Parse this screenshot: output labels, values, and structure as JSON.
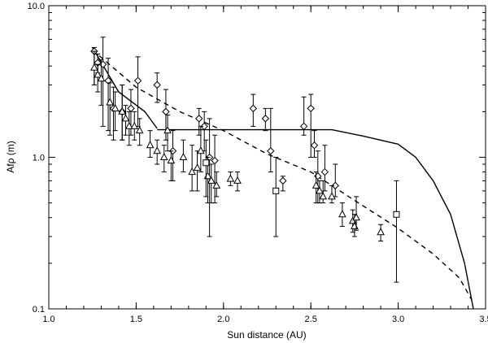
{
  "chart_data": {
    "type": "scatter",
    "xlabel": "Sun distance (AU)",
    "ylabel": "Afρ (m)",
    "xlim": [
      1.0,
      3.5
    ],
    "ylim": [
      0.1,
      10.0
    ],
    "yscale": "log",
    "grid": false,
    "x_ticks": [
      1.0,
      1.5,
      2.0,
      2.5,
      3.0,
      3.5
    ],
    "x_tick_labels": [
      "1.0",
      "1.5",
      "2.0",
      "2.5",
      "3.0",
      "3.5"
    ],
    "y_ticks": [
      0.1,
      1.0,
      10.0
    ],
    "y_tick_labels": [
      "0.1",
      "1.0",
      "10.0"
    ],
    "series": [
      {
        "marker": "diamond",
        "points": [
          {
            "x": 1.26,
            "y": 5.0,
            "ylo": 3.0,
            "yhi": 5.3
          },
          {
            "x": 1.28,
            "y": 4.2,
            "ylo": 3.6,
            "yhi": 4.8
          },
          {
            "x": 1.31,
            "y": 4.1,
            "ylo": 1.6,
            "yhi": 6.2
          },
          {
            "x": 1.34,
            "y": 3.2,
            "ylo": 1.5,
            "yhi": 4.5
          },
          {
            "x": 1.37,
            "y": 2.1,
            "ylo": 1.3,
            "yhi": 2.9
          },
          {
            "x": 1.42,
            "y": 2.0,
            "ylo": 1.3,
            "yhi": 3.0
          },
          {
            "x": 1.47,
            "y": 2.1,
            "ylo": 1.4,
            "yhi": 2.8
          },
          {
            "x": 1.51,
            "y": 3.2,
            "ylo": 1.6,
            "yhi": 4.6
          },
          {
            "x": 1.62,
            "y": 3.0,
            "ylo": 2.3,
            "yhi": 3.6
          },
          {
            "x": 1.67,
            "y": 2.0,
            "ylo": 1.3,
            "yhi": 2.8
          },
          {
            "x": 1.71,
            "y": 1.1,
            "ylo": 0.7,
            "yhi": 1.5
          },
          {
            "x": 1.86,
            "y": 1.8,
            "ylo": 1.4,
            "yhi": 2.1
          },
          {
            "x": 1.89,
            "y": 1.6,
            "ylo": 1.1,
            "yhi": 2.0
          },
          {
            "x": 1.92,
            "y": 1.0,
            "ylo": 0.3,
            "yhi": 1.8
          },
          {
            "x": 1.95,
            "y": 0.95,
            "ylo": 0.5,
            "yhi": 1.4
          },
          {
            "x": 2.17,
            "y": 2.1,
            "ylo": 1.6,
            "yhi": 2.6
          },
          {
            "x": 2.24,
            "y": 1.8,
            "ylo": 1.5,
            "yhi": 2.1
          },
          {
            "x": 2.27,
            "y": 1.1,
            "ylo": 0.8,
            "yhi": 2.1
          },
          {
            "x": 2.34,
            "y": 0.7,
            "ylo": 0.6,
            "yhi": 0.75
          },
          {
            "x": 2.46,
            "y": 1.6,
            "ylo": 1.4,
            "yhi": 2.5
          },
          {
            "x": 2.5,
            "y": 2.1,
            "ylo": 1.0,
            "yhi": 2.6
          },
          {
            "x": 2.52,
            "y": 1.2,
            "ylo": 1.0,
            "yhi": 1.5
          },
          {
            "x": 2.54,
            "y": 0.75,
            "ylo": 0.5,
            "yhi": 1.1
          },
          {
            "x": 2.58,
            "y": 0.8,
            "ylo": 0.6,
            "yhi": 1.2
          },
          {
            "x": 2.64,
            "y": 0.65,
            "ylo": 0.55,
            "yhi": 0.9
          }
        ]
      },
      {
        "marker": "triangle",
        "points": [
          {
            "x": 1.26,
            "y": 3.9,
            "ylo": 3.0,
            "yhi": 5.0
          },
          {
            "x": 1.28,
            "y": 3.5,
            "ylo": 2.7,
            "yhi": 4.1
          },
          {
            "x": 1.3,
            "y": 3.3,
            "ylo": 2.2,
            "yhi": 4.4
          },
          {
            "x": 1.35,
            "y": 2.3,
            "ylo": 1.4,
            "yhi": 3.1
          },
          {
            "x": 1.38,
            "y": 2.1,
            "ylo": 1.5,
            "yhi": 2.7
          },
          {
            "x": 1.42,
            "y": 2.0,
            "ylo": 1.3,
            "yhi": 3.0
          },
          {
            "x": 1.44,
            "y": 1.8,
            "ylo": 1.4,
            "yhi": 2.2
          },
          {
            "x": 1.46,
            "y": 1.6,
            "ylo": 1.2,
            "yhi": 2.0
          },
          {
            "x": 1.49,
            "y": 1.6,
            "ylo": 1.3,
            "yhi": 2.0
          },
          {
            "x": 1.52,
            "y": 1.5,
            "ylo": 1.2,
            "yhi": 1.8
          },
          {
            "x": 1.58,
            "y": 1.2,
            "ylo": 1.0,
            "yhi": 1.5
          },
          {
            "x": 1.62,
            "y": 1.1,
            "ylo": 0.9,
            "yhi": 1.3
          },
          {
            "x": 1.66,
            "y": 1.0,
            "ylo": 0.8,
            "yhi": 1.2
          },
          {
            "x": 1.68,
            "y": 1.5,
            "ylo": 1.1,
            "yhi": 1.9
          },
          {
            "x": 1.7,
            "y": 0.95,
            "ylo": 0.7,
            "yhi": 1.1
          },
          {
            "x": 1.77,
            "y": 1.0,
            "ylo": 0.8,
            "yhi": 1.3
          },
          {
            "x": 1.82,
            "y": 0.8,
            "ylo": 0.6,
            "yhi": 1.2
          },
          {
            "x": 1.85,
            "y": 0.85,
            "ylo": 0.6,
            "yhi": 1.1
          },
          {
            "x": 1.87,
            "y": 1.1,
            "ylo": 0.8,
            "yhi": 1.6
          },
          {
            "x": 1.91,
            "y": 0.75,
            "ylo": 0.5,
            "yhi": 1.0
          },
          {
            "x": 1.93,
            "y": 0.7,
            "ylo": 0.5,
            "yhi": 0.9
          },
          {
            "x": 1.96,
            "y": 0.65,
            "ylo": 0.55,
            "yhi": 0.8
          },
          {
            "x": 2.04,
            "y": 0.72,
            "ylo": 0.65,
            "yhi": 0.8
          },
          {
            "x": 2.08,
            "y": 0.7,
            "ylo": 0.6,
            "yhi": 0.8
          },
          {
            "x": 2.53,
            "y": 0.65,
            "ylo": 0.5,
            "yhi": 0.8
          },
          {
            "x": 2.55,
            "y": 0.6,
            "ylo": 0.5,
            "yhi": 0.7
          },
          {
            "x": 2.57,
            "y": 0.55,
            "ylo": 0.5,
            "yhi": 0.7
          },
          {
            "x": 2.62,
            "y": 0.55,
            "ylo": 0.5,
            "yhi": 0.65
          },
          {
            "x": 2.68,
            "y": 0.42,
            "ylo": 0.35,
            "yhi": 0.5
          },
          {
            "x": 2.74,
            "y": 0.38,
            "ylo": 0.32,
            "yhi": 0.45
          },
          {
            "x": 2.75,
            "y": 0.35,
            "ylo": 0.3,
            "yhi": 0.42
          },
          {
            "x": 2.76,
            "y": 0.4,
            "ylo": 0.33,
            "yhi": 0.55
          },
          {
            "x": 2.9,
            "y": 0.32,
            "ylo": 0.28,
            "yhi": 0.36
          }
        ]
      },
      {
        "marker": "square",
        "points": [
          {
            "x": 1.9,
            "y": 0.92,
            "ylo": 0.55,
            "yhi": 1.3
          },
          {
            "x": 2.3,
            "y": 0.6,
            "ylo": 0.3,
            "yhi": 1.0
          },
          {
            "x": 2.99,
            "y": 0.42,
            "ylo": 0.15,
            "yhi": 0.7
          }
        ]
      }
    ],
    "curves": [
      {
        "style": "dashed",
        "points": [
          [
            1.25,
            5.1
          ],
          [
            1.5,
            2.9
          ],
          [
            1.75,
            2.0
          ],
          [
            2.0,
            1.5
          ],
          [
            2.25,
            1.05
          ],
          [
            2.5,
            0.8
          ],
          [
            2.75,
            0.52
          ],
          [
            3.0,
            0.34
          ],
          [
            3.2,
            0.23
          ],
          [
            3.35,
            0.16
          ],
          [
            3.42,
            0.115
          ]
        ]
      },
      {
        "style": "solid-steep",
        "points": [
          [
            1.25,
            5.3
          ],
          [
            1.4,
            2.7
          ],
          [
            1.55,
            2.0
          ],
          [
            1.62,
            1.55
          ]
        ]
      },
      {
        "style": "solid",
        "points": [
          [
            1.62,
            1.52
          ],
          [
            2.0,
            1.52
          ],
          [
            2.4,
            1.52
          ],
          [
            2.62,
            1.52
          ],
          [
            2.8,
            1.38
          ],
          [
            3.0,
            1.22
          ],
          [
            3.1,
            1.0
          ],
          [
            3.2,
            0.7
          ],
          [
            3.3,
            0.42
          ],
          [
            3.38,
            0.2
          ],
          [
            3.43,
            0.1
          ]
        ]
      }
    ]
  }
}
